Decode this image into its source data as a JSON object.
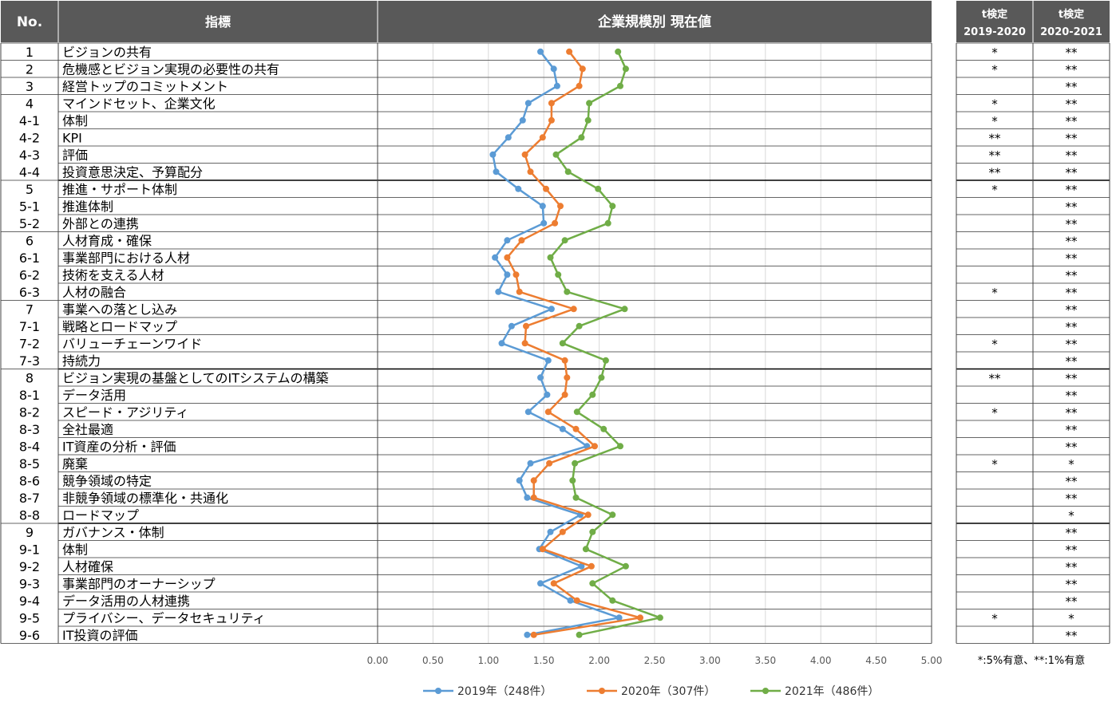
{
  "header": {
    "no": "No.",
    "indicator": "指標",
    "chart_title": "企業規模別  現在値",
    "ttest1_line1": "t検定",
    "ttest1_line2": "2019-2020",
    "ttest2_line1": "t検定",
    "ttest2_line2": "2020-2021"
  },
  "footnote": "*:5%有意、**:1%有意",
  "colors": {
    "header_bg": "#595959",
    "grid": "#d9d9d9",
    "series_2019": "#5b9bd5",
    "series_2020": "#ed7d31",
    "series_2021": "#70ad47"
  },
  "rows": [
    {
      "no": "1",
      "label": "ビジョンの共有",
      "t1": "*",
      "t2": "**"
    },
    {
      "no": "2",
      "label": "危機感とビジョン実現の必要性の共有",
      "t1": "*",
      "t2": "**"
    },
    {
      "no": "3",
      "label": "経営トップのコミットメント",
      "t1": "",
      "t2": "**"
    },
    {
      "no": "4",
      "label": "マインドセット、企業文化",
      "t1": "*",
      "t2": "**"
    },
    {
      "no": "4-1",
      "label": "体制",
      "t1": "*",
      "t2": "**"
    },
    {
      "no": "4-2",
      "label": "KPI",
      "t1": "**",
      "t2": "**"
    },
    {
      "no": "4-3",
      "label": "評価",
      "t1": "**",
      "t2": "**"
    },
    {
      "no": "4-4",
      "label": "投資意思決定、予算配分",
      "t1": "**",
      "t2": "**"
    },
    {
      "no": "5",
      "label": "推進・サポート体制",
      "t1": "*",
      "t2": "**"
    },
    {
      "no": "5-1",
      "label": "推進体制",
      "t1": "",
      "t2": "**"
    },
    {
      "no": "5-2",
      "label": "外部との連携",
      "t1": "",
      "t2": "**"
    },
    {
      "no": "6",
      "label": "人材育成・確保",
      "t1": "",
      "t2": "**"
    },
    {
      "no": "6-1",
      "label": "事業部門における人材",
      "t1": "",
      "t2": "**"
    },
    {
      "no": "6-2",
      "label": "技術を支える人材",
      "t1": "",
      "t2": "**"
    },
    {
      "no": "6-3",
      "label": "人材の融合",
      "t1": "*",
      "t2": "**"
    },
    {
      "no": "7",
      "label": "事業への落とし込み",
      "t1": "",
      "t2": "**"
    },
    {
      "no": "7-1",
      "label": "戦略とロードマップ",
      "t1": "",
      "t2": "**"
    },
    {
      "no": "7-2",
      "label": "バリューチェーンワイド",
      "t1": "*",
      "t2": "**"
    },
    {
      "no": "7-3",
      "label": "持続力",
      "t1": "",
      "t2": "**"
    },
    {
      "no": "8",
      "label": "ビジョン実現の基盤としてのITシステムの構築",
      "t1": "**",
      "t2": "**"
    },
    {
      "no": "8-1",
      "label": "データ活用",
      "t1": "",
      "t2": "**"
    },
    {
      "no": "8-2",
      "label": "スピード・アジリティ",
      "t1": "*",
      "t2": "**"
    },
    {
      "no": "8-3",
      "label": "全社最適",
      "t1": "",
      "t2": "**"
    },
    {
      "no": "8-4",
      "label": "IT資産の分析・評価",
      "t1": "",
      "t2": "**"
    },
    {
      "no": "8-5",
      "label": "廃棄",
      "t1": "*",
      "t2": "*"
    },
    {
      "no": "8-6",
      "label": "競争領域の特定",
      "t1": "",
      "t2": "**"
    },
    {
      "no": "8-7",
      "label": "非競争領域の標準化・共通化",
      "t1": "",
      "t2": "**"
    },
    {
      "no": "8-8",
      "label": "ロードマップ",
      "t1": "",
      "t2": "*"
    },
    {
      "no": "9",
      "label": "ガバナンス・体制",
      "t1": "",
      "t2": "**"
    },
    {
      "no": "9-1",
      "label": "体制",
      "t1": "",
      "t2": "**"
    },
    {
      "no": "9-2",
      "label": "人材確保",
      "t1": "",
      "t2": "**"
    },
    {
      "no": "9-3",
      "label": "事業部門のオーナーシップ",
      "t1": "",
      "t2": "**"
    },
    {
      "no": "9-4",
      "label": "データ活用の人材連携",
      "t1": "",
      "t2": "**"
    },
    {
      "no": "9-5",
      "label": "プライバシー、データセキュリティ",
      "t1": "*",
      "t2": "*"
    },
    {
      "no": "9-6",
      "label": "IT投資の評価",
      "t1": "",
      "t2": "**"
    }
  ],
  "chart_data": {
    "type": "line",
    "orientation": "horizontal",
    "title": "企業規模別  現在値",
    "categories": [
      "1",
      "2",
      "3",
      "4",
      "4-1",
      "4-2",
      "4-3",
      "4-4",
      "5",
      "5-1",
      "5-2",
      "6",
      "6-1",
      "6-2",
      "6-3",
      "7",
      "7-1",
      "7-2",
      "7-3",
      "8",
      "8-1",
      "8-2",
      "8-3",
      "8-4",
      "8-5",
      "8-6",
      "8-7",
      "8-8",
      "9",
      "9-1",
      "9-2",
      "9-3",
      "9-4",
      "9-5",
      "9-6"
    ],
    "xlim": [
      0,
      5
    ],
    "xticks": [
      "0.00",
      "0.50",
      "1.00",
      "1.50",
      "2.00",
      "2.50",
      "3.00",
      "3.50",
      "4.00",
      "4.50",
      "5.00"
    ],
    "grid": true,
    "legend_position": "bottom",
    "series": [
      {
        "name": "2019年（248件）",
        "color": "#5b9bd5",
        "values": [
          1.47,
          1.59,
          1.62,
          1.36,
          1.31,
          1.18,
          1.04,
          1.07,
          1.27,
          1.49,
          1.5,
          1.17,
          1.06,
          1.17,
          1.09,
          1.57,
          1.21,
          1.12,
          1.54,
          1.47,
          1.53,
          1.36,
          1.67,
          1.89,
          1.38,
          1.28,
          1.35,
          1.83,
          1.56,
          1.46,
          1.84,
          1.47,
          1.74,
          2.18,
          1.35
        ]
      },
      {
        "name": "2020年（307件）",
        "color": "#ed7d31",
        "values": [
          1.73,
          1.85,
          1.82,
          1.57,
          1.57,
          1.49,
          1.33,
          1.38,
          1.52,
          1.65,
          1.6,
          1.3,
          1.17,
          1.25,
          1.28,
          1.77,
          1.34,
          1.33,
          1.69,
          1.71,
          1.69,
          1.54,
          1.79,
          1.96,
          1.55,
          1.41,
          1.41,
          1.9,
          1.67,
          1.49,
          1.93,
          1.59,
          1.8,
          2.37,
          1.41
        ]
      },
      {
        "name": "2021年（486件）",
        "color": "#70ad47",
        "values": [
          2.17,
          2.24,
          2.19,
          1.91,
          1.9,
          1.84,
          1.61,
          1.72,
          1.99,
          2.12,
          2.08,
          1.69,
          1.56,
          1.63,
          1.71,
          2.23,
          1.82,
          1.67,
          2.06,
          2.02,
          1.94,
          1.8,
          2.04,
          2.19,
          1.78,
          1.76,
          1.79,
          2.12,
          1.94,
          1.88,
          2.24,
          1.94,
          2.12,
          2.55,
          1.82
        ]
      }
    ]
  }
}
